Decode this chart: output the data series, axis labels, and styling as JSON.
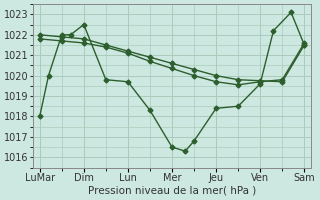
{
  "background_color": "#cce8e0",
  "grid_color": "#aaccbb",
  "line_color": "#2d5e2d",
  "xtick_labels": [
    "LuMar",
    "Dim",
    "Lun",
    "Mer",
    "Jeu",
    "Ven",
    "Sam"
  ],
  "xlabel": "Pression niveau de la mer( hPa )",
  "ylim": [
    1015.5,
    1023.5
  ],
  "yticks": [
    1016,
    1017,
    1018,
    1019,
    1020,
    1021,
    1022,
    1023
  ],
  "xtick_positions": [
    0,
    1,
    2,
    3,
    4,
    5,
    6
  ],
  "line1_x": [
    0,
    0.2,
    0.5,
    0.7,
    1.0,
    1.5,
    2.0,
    2.5,
    3.0,
    3.3,
    3.5,
    4.0,
    4.5,
    5.0,
    5.3,
    5.7,
    6.0
  ],
  "line1_y": [
    1018.0,
    1020.0,
    1022.0,
    1022.0,
    1022.5,
    1019.8,
    1019.7,
    1018.3,
    1016.5,
    1016.3,
    1016.8,
    1018.4,
    1018.5,
    1019.6,
    1022.2,
    1023.1,
    1021.5
  ],
  "line2_x": [
    0,
    0.5,
    1.0,
    1.5,
    2.0,
    2.5,
    3.0,
    3.5,
    4.0,
    4.5,
    5.0,
    5.5,
    6.0
  ],
  "line2_y": [
    1022.0,
    1021.9,
    1021.8,
    1021.5,
    1021.2,
    1020.9,
    1020.6,
    1020.3,
    1020.0,
    1019.8,
    1019.75,
    1019.7,
    1021.5
  ],
  "line3_x": [
    0,
    0.5,
    1.0,
    1.5,
    2.0,
    2.5,
    3.0,
    3.5,
    4.0,
    4.5,
    5.0,
    5.5,
    6.0
  ],
  "line3_y": [
    1021.8,
    1021.7,
    1021.6,
    1021.4,
    1021.1,
    1020.7,
    1020.35,
    1020.0,
    1019.7,
    1019.55,
    1019.7,
    1019.8,
    1021.6
  ],
  "marker": "D",
  "markersize": 2.5,
  "linewidth": 1.0,
  "fontsize_ticks": 7,
  "fontsize_xlabel": 7.5
}
